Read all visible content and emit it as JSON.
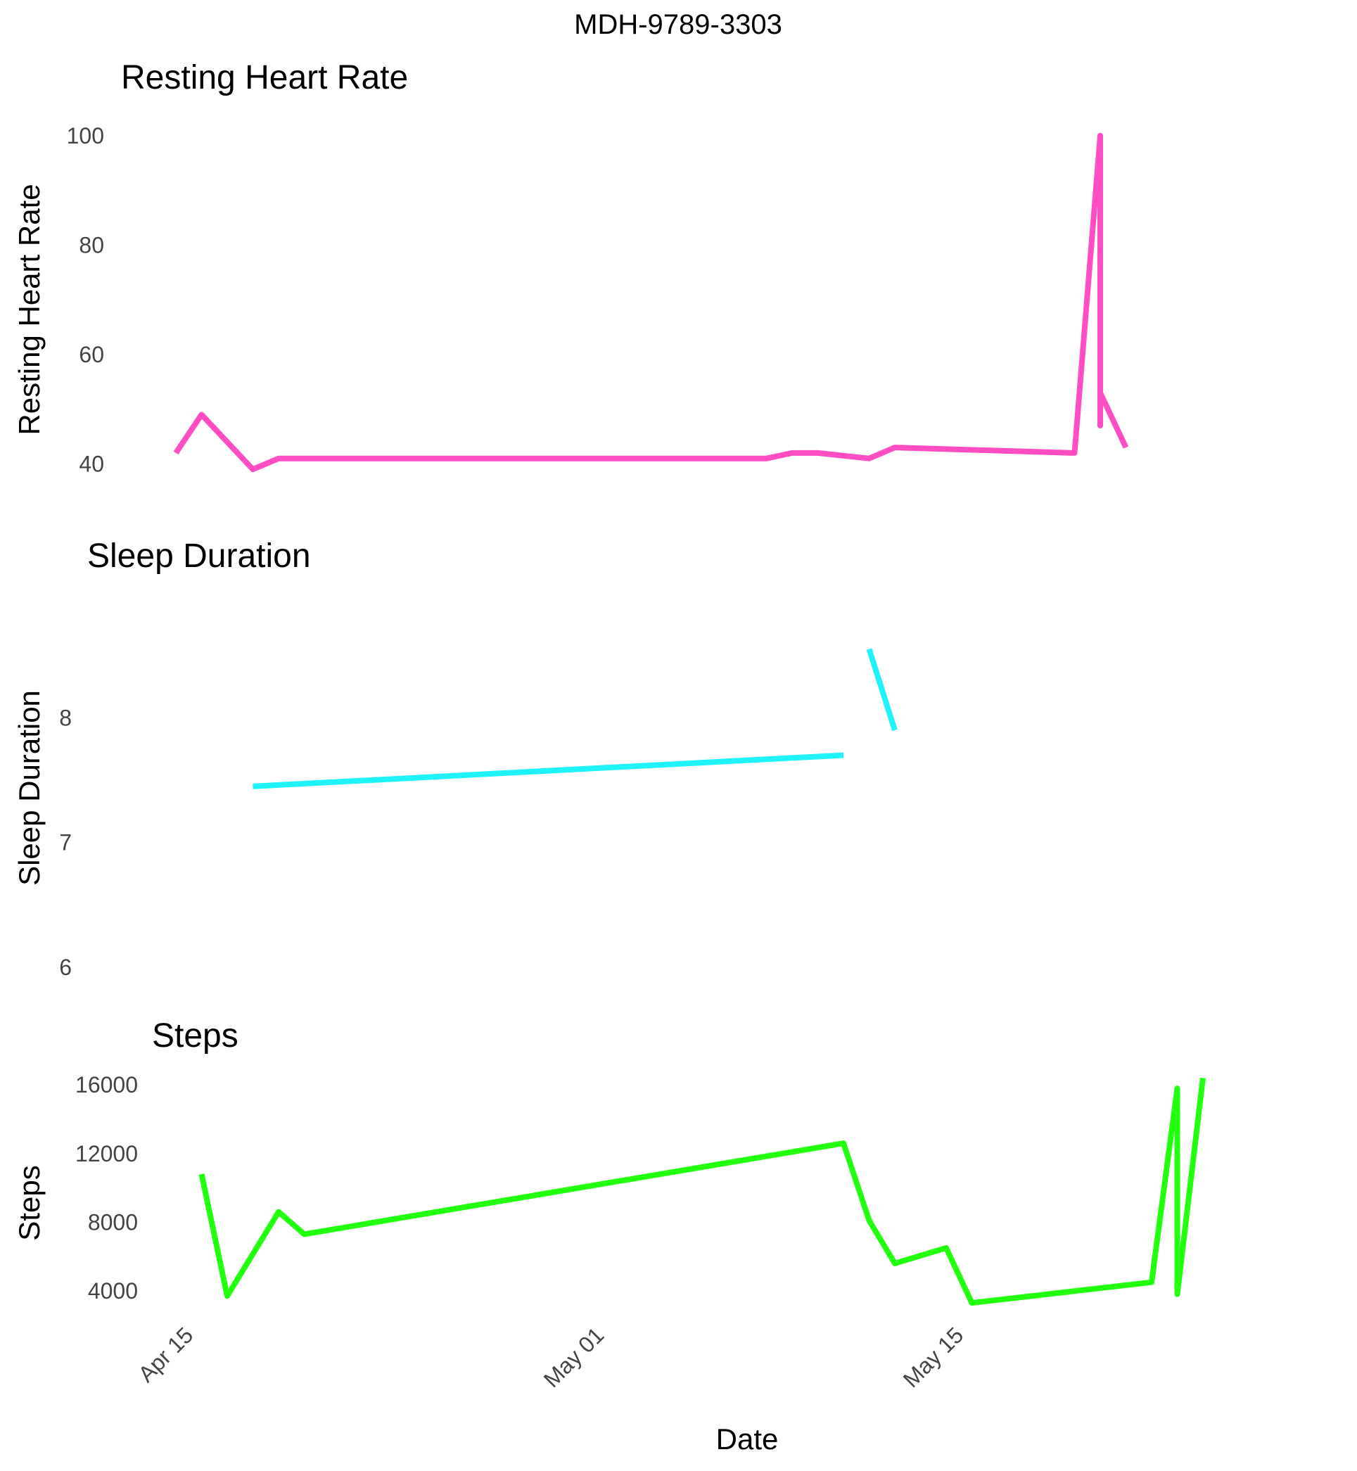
{
  "chart_data": {
    "type": "line",
    "title": "MDH-9789-3303",
    "xlabel": "Date",
    "x_ticks": [
      "Apr 15",
      "May 01",
      "May 15"
    ],
    "grid": false,
    "panels": [
      {
        "title": "Resting Heart Rate",
        "ylabel": "Resting Heart Rate",
        "color": "#ff4dc4",
        "ylim": [
          38,
          101
        ],
        "yticks": [
          40,
          60,
          80,
          100
        ],
        "series": [
          {
            "values": [
              [
                0,
                42
              ],
              [
                1,
                49
              ],
              [
                3,
                39
              ],
              [
                4,
                41
              ],
              [
                23,
                41
              ],
              [
                24,
                42
              ],
              [
                25,
                42
              ],
              [
                27,
                41
              ],
              [
                28,
                43
              ],
              [
                35,
                42
              ],
              [
                36,
                100
              ],
              [
                36,
                47
              ],
              [
                36,
                53
              ],
              [
                37,
                43
              ]
            ]
          }
        ]
      },
      {
        "title": "Sleep Duration",
        "ylabel": "Sleep Duration",
        "color": "#1ff3f8",
        "ylim": [
          6,
          8.65
        ],
        "yticks": [
          6,
          7,
          8
        ],
        "series": [
          {
            "values": [
              [
                3,
                7.45
              ],
              [
                26,
                7.7
              ]
            ]
          },
          {
            "values": [
              [
                27,
                8.55
              ],
              [
                28,
                7.9
              ]
            ]
          }
        ]
      },
      {
        "title": "Steps",
        "ylabel": "Steps",
        "color": "#22ff0f",
        "ylim": [
          3300,
          16500
        ],
        "yticks": [
          4000,
          8000,
          12000,
          16000
        ],
        "series": [
          {
            "values": [
              [
                1,
                10800
              ],
              [
                2,
                3700
              ],
              [
                4,
                8600
              ],
              [
                5,
                7300
              ],
              [
                26,
                12600
              ],
              [
                27,
                8100
              ],
              [
                28,
                5600
              ],
              [
                30,
                6500
              ],
              [
                31,
                3300
              ],
              [
                38,
                4500
              ],
              [
                39,
                15800
              ],
              [
                39,
                3800
              ],
              [
                40,
                16400
              ]
            ]
          }
        ]
      }
    ]
  }
}
